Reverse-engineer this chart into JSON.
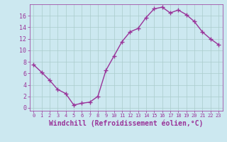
{
  "x": [
    0,
    1,
    2,
    3,
    4,
    5,
    6,
    7,
    8,
    9,
    10,
    11,
    12,
    13,
    14,
    15,
    16,
    17,
    18,
    19,
    20,
    21,
    22,
    23
  ],
  "y": [
    7.5,
    6.2,
    4.8,
    3.2,
    2.5,
    0.5,
    0.8,
    1.0,
    2.0,
    6.5,
    9.0,
    11.5,
    13.2,
    13.8,
    15.7,
    17.2,
    17.5,
    16.5,
    17.0,
    16.2,
    15.0,
    13.2,
    12.0,
    11.0
  ],
  "line_color": "#993399",
  "marker": "+",
  "marker_size": 4,
  "marker_lw": 1.0,
  "line_width": 1.0,
  "xlabel": "Windchill (Refroidissement éolien,°C)",
  "xlabel_fontsize": 7,
  "background_color": "#cce8f0",
  "grid_color": "#aacccc",
  "ylim": [
    -0.5,
    18
  ],
  "xlim": [
    -0.5,
    23.5
  ],
  "yticks": [
    0,
    2,
    4,
    6,
    8,
    10,
    12,
    14,
    16
  ],
  "xticks": [
    0,
    1,
    2,
    3,
    4,
    5,
    6,
    7,
    8,
    9,
    10,
    11,
    12,
    13,
    14,
    15,
    16,
    17,
    18,
    19,
    20,
    21,
    22,
    23
  ],
  "tick_color": "#993399",
  "ytick_fontsize": 6,
  "xtick_fontsize": 5,
  "axis_label_color": "#993399",
  "spine_color": "#993399"
}
